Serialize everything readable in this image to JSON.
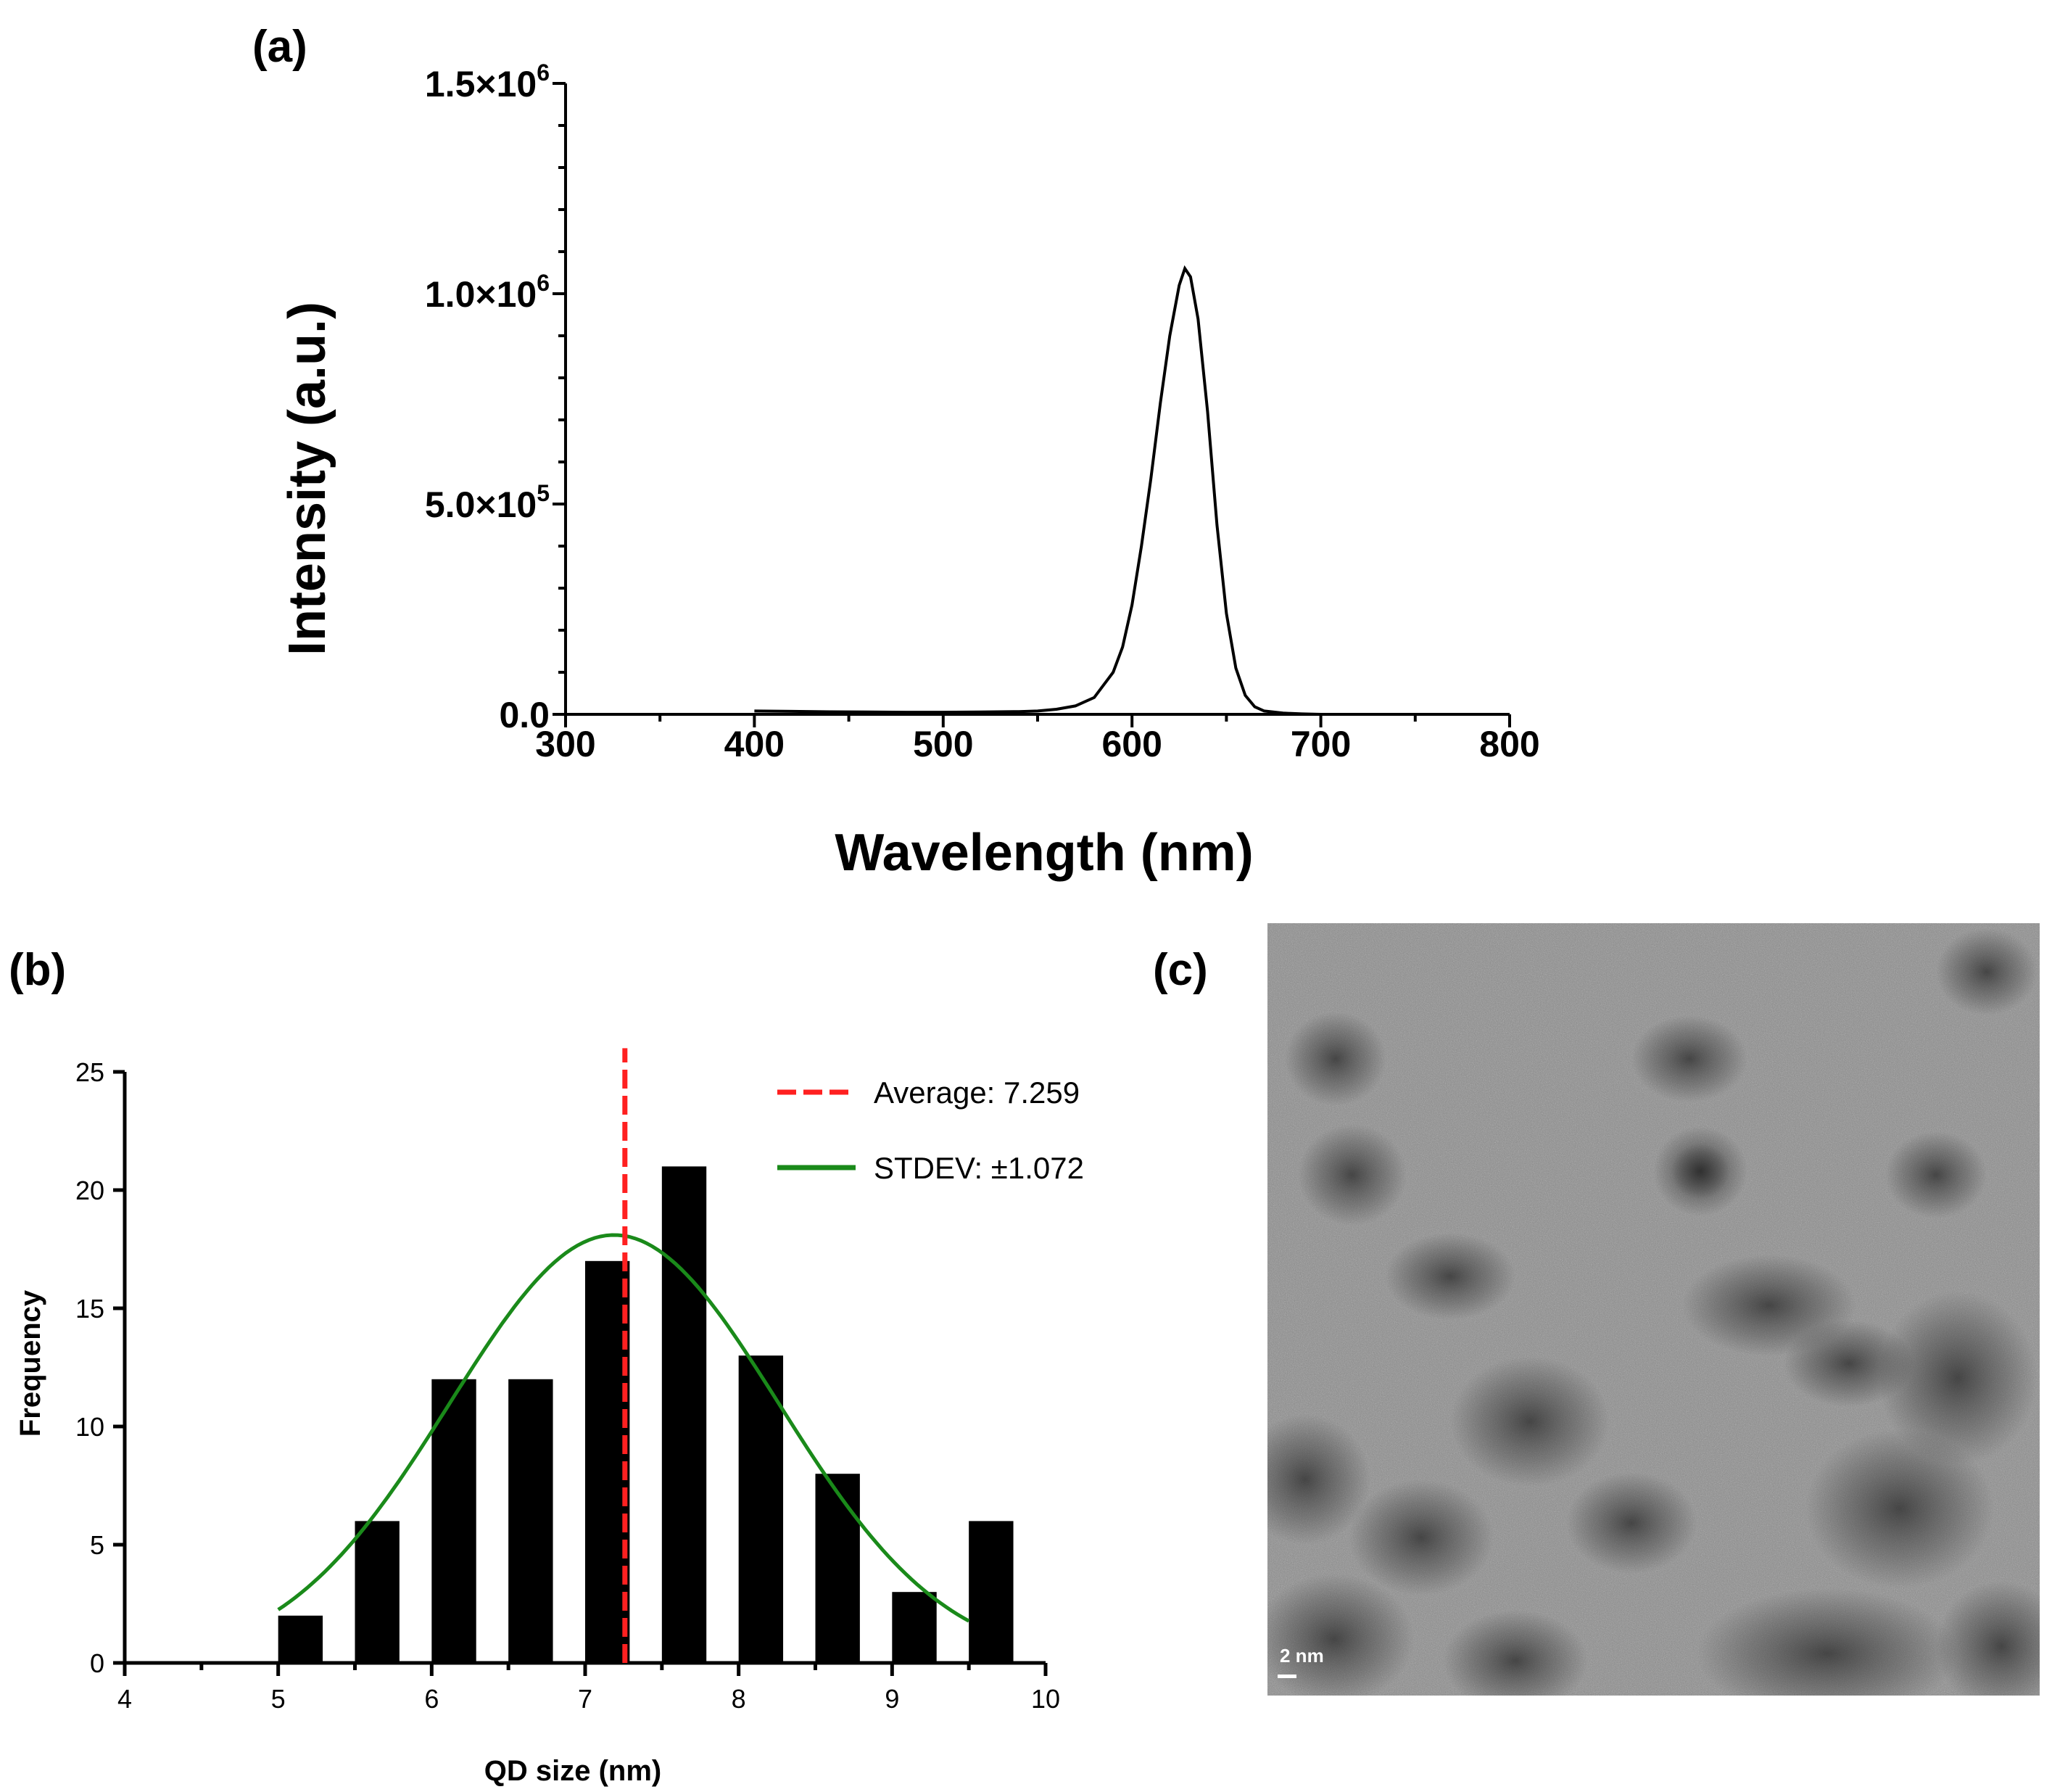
{
  "panels": {
    "a_label": "(a)",
    "b_label": "(b)",
    "c_label": "(c)"
  },
  "colors": {
    "axis": "#000000",
    "bars": "#000000",
    "average_line": "#ff2020",
    "stdev_curve": "#1a8a1a",
    "tem_background": "#8a8a8a"
  },
  "chart_data": [
    {
      "type": "line",
      "panel": "(a)",
      "title": "",
      "xlabel": "Wavelength (nm)",
      "ylabel": "Intensity (a.u.)",
      "xlim": [
        300,
        800
      ],
      "ylim": [
        0,
        1500000
      ],
      "x_ticks": [
        300,
        400,
        500,
        600,
        700,
        800
      ],
      "y_ticks": [
        {
          "value": 0,
          "base": "0.0",
          "exp": ""
        },
        {
          "value": 500000,
          "base": "5.0×10",
          "exp": "5"
        },
        {
          "value": 1000000,
          "base": "1.0×10",
          "exp": "6"
        },
        {
          "value": 1500000,
          "base": "1.5×10",
          "exp": "6"
        }
      ],
      "series": [
        {
          "x": [
            400,
            420,
            440,
            460,
            480,
            500,
            520,
            540,
            550,
            560,
            570,
            580,
            590,
            595,
            600,
            605,
            610,
            615,
            620,
            625,
            628,
            631,
            635,
            640,
            645,
            650,
            655,
            660,
            665,
            670,
            680,
            690,
            700
          ],
          "y": [
            8000,
            7000,
            6000,
            5500,
            5000,
            5000,
            5500,
            6500,
            8000,
            12000,
            20000,
            40000,
            100000,
            160000,
            260000,
            400000,
            560000,
            740000,
            900000,
            1020000,
            1060000,
            1040000,
            940000,
            720000,
            450000,
            240000,
            110000,
            45000,
            18000,
            8000,
            3000,
            1000,
            0
          ]
        }
      ]
    },
    {
      "type": "bar",
      "panel": "(b)",
      "title": "",
      "xlabel": "QD size (nm)",
      "ylabel": "Frequency",
      "xlim": [
        4,
        10
      ],
      "ylim": [
        0,
        25
      ],
      "x_ticks": [
        4,
        5,
        6,
        7,
        8,
        9,
        10
      ],
      "y_ticks": [
        0,
        5,
        10,
        15,
        20,
        25
      ],
      "categories": [
        5.0,
        5.5,
        6.0,
        6.5,
        7.0,
        7.5,
        8.0,
        8.5,
        9.0,
        9.5
      ],
      "values": [
        2,
        6,
        12,
        12,
        17,
        21,
        13,
        8,
        3,
        6
      ],
      "average": 7.259,
      "stdev": 1.072,
      "legend": [
        {
          "label": "Average: 7.259",
          "style": "dashed-red"
        },
        {
          "label": "STDEV: ±1.072",
          "style": "solid-green"
        }
      ],
      "fit_curve": {
        "type": "gaussian",
        "x_range": [
          5.0,
          9.5
        ]
      }
    }
  ],
  "tem_image": {
    "panel": "(c)",
    "scale_bar_label": "2 nm"
  }
}
